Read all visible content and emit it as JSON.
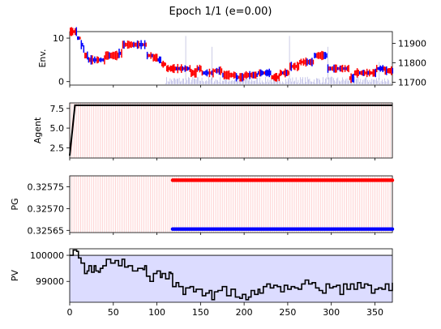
{
  "figure": {
    "title": "Epoch 1/1 (e=0.00)"
  },
  "chart_data": [
    {
      "id": "env",
      "type": "bar",
      "ylabel": "Env.",
      "xlim": [
        0,
        370
      ],
      "ylim": [
        -0.8,
        11.5
      ],
      "yticks": [
        0,
        10
      ],
      "y2lim": [
        11685,
        11960
      ],
      "y2ticks": [
        11700,
        11800,
        11900
      ],
      "price_steps": [
        [
          0,
          11.5
        ],
        [
          8,
          10
        ],
        [
          12,
          8.5
        ],
        [
          15,
          7.5
        ],
        [
          16,
          6
        ],
        [
          20,
          5
        ],
        [
          40,
          6
        ],
        [
          55,
          6.5
        ],
        [
          60,
          8.5
        ],
        [
          85,
          8.5
        ],
        [
          88,
          6
        ],
        [
          95,
          5.5
        ],
        [
          100,
          5
        ],
        [
          105,
          4
        ],
        [
          110,
          3
        ],
        [
          130,
          3
        ],
        [
          138,
          2
        ],
        [
          145,
          3
        ],
        [
          150,
          2
        ],
        [
          165,
          2.5
        ],
        [
          175,
          1.5
        ],
        [
          190,
          1
        ],
        [
          200,
          1.5
        ],
        [
          215,
          2
        ],
        [
          230,
          1
        ],
        [
          240,
          2
        ],
        [
          250,
          2
        ],
        [
          252,
          3.5
        ],
        [
          262,
          4.5
        ],
        [
          275,
          4.5
        ],
        [
          280,
          6
        ],
        [
          290,
          6
        ],
        [
          295,
          3
        ],
        [
          310,
          3
        ],
        [
          320,
          0.8
        ],
        [
          325,
          2
        ],
        [
          340,
          2
        ],
        [
          350,
          3
        ],
        [
          360,
          2.5
        ],
        [
          370,
          2.5
        ]
      ],
      "up_color": "#ff0000",
      "down_color": "#0000ff",
      "volume_color": "#7777cc"
    },
    {
      "id": "agent",
      "type": "line",
      "ylabel": "Agent",
      "xlim": [
        0,
        370
      ],
      "ylim": [
        1.2,
        8.2
      ],
      "yticks": [
        2.5,
        5.0,
        7.5
      ],
      "ytick_labels": [
        "2.5",
        "5.0",
        "7.5"
      ],
      "series": [
        {
          "x": [
            0,
            6,
            370
          ],
          "y": [
            1.5,
            7.9,
            7.9
          ],
          "color": "#000000"
        }
      ],
      "background_bars": "#ffd5d5"
    },
    {
      "id": "pg",
      "type": "scatter",
      "ylabel": "PG",
      "xlim": [
        0,
        370
      ],
      "ylim": [
        0.325645,
        0.325775
      ],
      "yticks": [
        0.32565,
        0.3257,
        0.32575
      ],
      "ytick_labels": [
        "0.32565",
        "0.32570",
        "0.32575"
      ],
      "series": [
        {
          "x_start": 118,
          "x_end": 370,
          "y": 0.325765,
          "color": "#ff0000"
        },
        {
          "x_start": 118,
          "x_end": 370,
          "y": 0.325653,
          "color": "#0000ff"
        }
      ],
      "background_bars": "#ffd5d5"
    },
    {
      "id": "pv",
      "type": "line",
      "ylabel": "PV",
      "xlabel": "",
      "xlim": [
        0,
        370
      ],
      "ylim": [
        98200,
        100250
      ],
      "yticks": [
        99000,
        100000
      ],
      "ytick_labels": [
        "99000",
        "100000"
      ],
      "xticks": [
        0,
        50,
        100,
        150,
        200,
        250,
        300,
        350
      ],
      "xtick_labels": [
        "0",
        "50",
        "100",
        "150",
        "200",
        "250",
        "300",
        "350"
      ],
      "baseline": 100000,
      "fill_color": "#dcdcff",
      "series": [
        {
          "color": "#000000",
          "points": [
            [
              0,
              100000
            ],
            [
              4,
              100200
            ],
            [
              8,
              100150
            ],
            [
              10,
              99900
            ],
            [
              13,
              99700
            ],
            [
              17,
              99300
            ],
            [
              20,
              99400
            ],
            [
              22,
              99600
            ],
            [
              25,
              99350
            ],
            [
              28,
              99600
            ],
            [
              30,
              99400
            ],
            [
              33,
              99350
            ],
            [
              35,
              99500
            ],
            [
              38,
              99600
            ],
            [
              42,
              99850
            ],
            [
              47,
              99700
            ],
            [
              52,
              99800
            ],
            [
              56,
              99600
            ],
            [
              60,
              99850
            ],
            [
              63,
              99550
            ],
            [
              67,
              99600
            ],
            [
              72,
              99400
            ],
            [
              78,
              99500
            ],
            [
              84,
              99450
            ],
            [
              86,
              99600
            ],
            [
              88,
              99200
            ],
            [
              92,
              99000
            ],
            [
              96,
              99300
            ],
            [
              100,
              99400
            ],
            [
              104,
              99150
            ],
            [
              106,
              99300
            ],
            [
              110,
              99100
            ],
            [
              114,
              99350
            ],
            [
              116,
              99300
            ],
            [
              118,
              98800
            ],
            [
              122,
              98950
            ],
            [
              125,
              98800
            ],
            [
              130,
              98500
            ],
            [
              133,
              98750
            ],
            [
              138,
              98800
            ],
            [
              142,
              98600
            ],
            [
              145,
              98700
            ],
            [
              148,
              98700
            ],
            [
              152,
              98450
            ],
            [
              156,
              98550
            ],
            [
              160,
              98650
            ],
            [
              163,
              98300
            ],
            [
              166,
              98600
            ],
            [
              170,
              98650
            ],
            [
              175,
              98800
            ],
            [
              180,
              98450
            ],
            [
              185,
              98700
            ],
            [
              190,
              98400
            ],
            [
              195,
              98350
            ],
            [
              198,
              98500
            ],
            [
              202,
              98300
            ],
            [
              205,
              98400
            ],
            [
              208,
              98650
            ],
            [
              212,
              98500
            ],
            [
              216,
              98700
            ],
            [
              218,
              98550
            ],
            [
              222,
              98800
            ],
            [
              226,
              98900
            ],
            [
              230,
              98750
            ],
            [
              234,
              98850
            ],
            [
              238,
              98800
            ],
            [
              242,
              98600
            ],
            [
              246,
              98850
            ],
            [
              250,
              98700
            ],
            [
              254,
              98800
            ],
            [
              258,
              98750
            ],
            [
              262,
              98700
            ],
            [
              266,
              98900
            ],
            [
              270,
              99050
            ],
            [
              274,
              98900
            ],
            [
              278,
              98950
            ],
            [
              282,
              98750
            ],
            [
              286,
              98650
            ],
            [
              290,
              98550
            ],
            [
              294,
              98900
            ],
            [
              298,
              98750
            ],
            [
              302,
              98800
            ],
            [
              306,
              98850
            ],
            [
              310,
              98500
            ],
            [
              314,
              98900
            ],
            [
              318,
              98700
            ],
            [
              322,
              98900
            ],
            [
              326,
              98700
            ],
            [
              330,
              98950
            ],
            [
              334,
              98750
            ],
            [
              338,
              98900
            ],
            [
              342,
              98850
            ],
            [
              346,
              98550
            ],
            [
              350,
              98700
            ],
            [
              354,
              98750
            ],
            [
              358,
              98700
            ],
            [
              362,
              98900
            ],
            [
              366,
              98650
            ],
            [
              370,
              98950
            ]
          ]
        }
      ]
    }
  ]
}
